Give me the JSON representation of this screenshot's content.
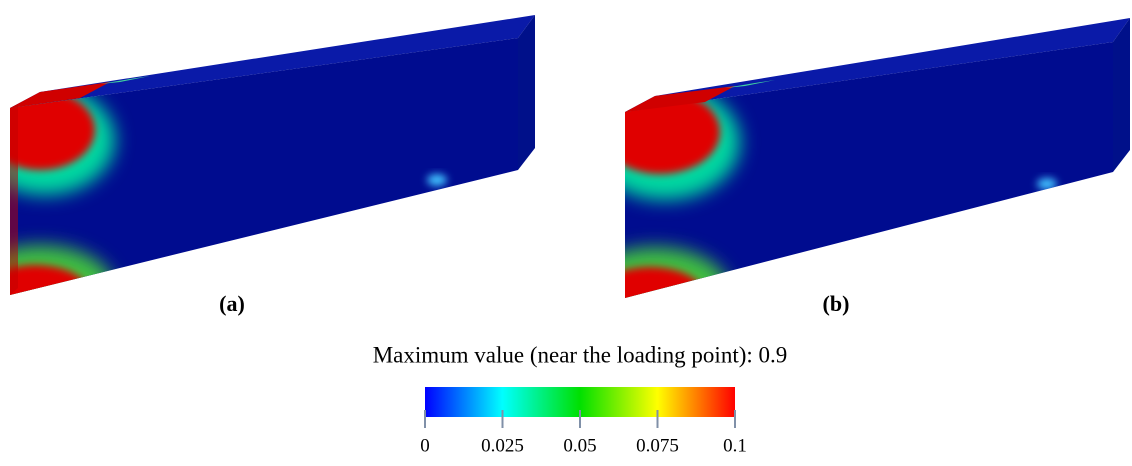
{
  "panels": [
    {
      "label": "(a)"
    },
    {
      "label": "(b)"
    }
  ],
  "caption": "Maximum value (near the loading point): 0.9",
  "colorbar": {
    "lim": [
      0,
      0.1
    ],
    "ticks": [
      0,
      0.025,
      0.05,
      0.075,
      0.1
    ]
  }
}
